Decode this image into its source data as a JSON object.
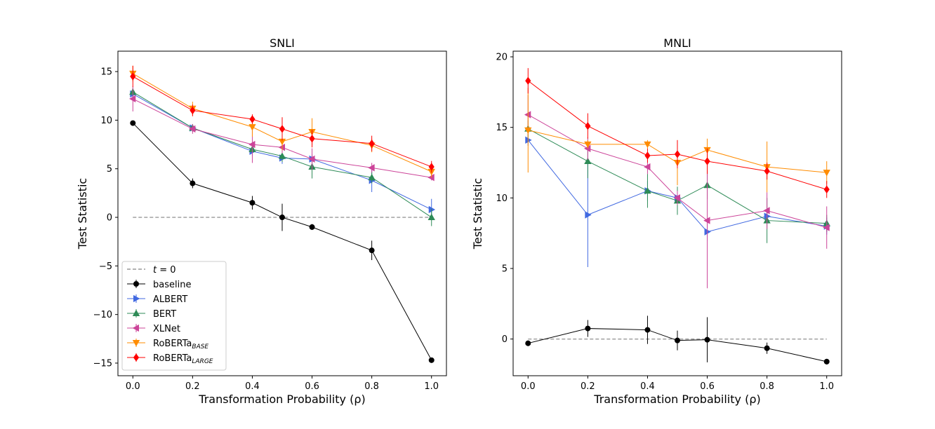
{
  "chart_data": [
    {
      "type": "line",
      "title": "SNLI",
      "xlabel": "Transformation Probability (ρ)",
      "ylabel": "Test Statistic",
      "xlim": [
        -0.05,
        1.05
      ],
      "ylim": [
        -16.3,
        17.1
      ],
      "xticks": [
        0.0,
        0.2,
        0.4,
        0.6,
        0.8,
        1.0
      ],
      "xtick_labels": [
        "0.0",
        "0.2",
        "0.4",
        "0.6",
        "0.8",
        "1.0"
      ],
      "yticks": [
        -15,
        -10,
        -5,
        0,
        5,
        10,
        15
      ],
      "ytick_labels": [
        "−15",
        "−10",
        "−5",
        "0",
        "5",
        "10",
        "15"
      ],
      "grid": false,
      "legend_position": "lower-left",
      "reference_line": {
        "label": "t = 0",
        "y": 0,
        "x_range": [
          0.0,
          1.0
        ],
        "color": "#999999"
      },
      "x": [
        0.0,
        0.2,
        0.4,
        0.5,
        0.6,
        0.8,
        1.0
      ],
      "series": [
        {
          "name": "baseline",
          "color": "#000000",
          "marker": "circle",
          "values": [
            9.7,
            3.5,
            1.5,
            0.0,
            -1.0,
            -3.4,
            -14.7
          ],
          "errors": [
            0.2,
            0.5,
            0.7,
            1.4,
            0.3,
            1.0,
            0.2
          ]
        },
        {
          "name": "ALBERT",
          "color": "#4169E1",
          "marker": "triangle-right",
          "values": [
            12.7,
            9.2,
            6.8,
            6.1,
            6.0,
            3.8,
            0.8
          ],
          "errors": [
            0.4,
            0.4,
            0.5,
            0.6,
            0.5,
            1.2,
            1.1
          ]
        },
        {
          "name": "BERT",
          "color": "#2E8B57",
          "marker": "triangle-up",
          "values": [
            12.9,
            9.2,
            7.0,
            6.3,
            5.2,
            4.1,
            0.0
          ],
          "errors": [
            0.4,
            0.4,
            0.5,
            0.6,
            1.2,
            0.6,
            0.9
          ]
        },
        {
          "name": "XLNet",
          "color": "#CC4499",
          "marker": "triangle-left",
          "values": [
            12.2,
            9.1,
            7.5,
            7.2,
            6.0,
            5.1,
            4.1
          ],
          "errors": [
            1.3,
            0.5,
            1.9,
            0.6,
            1.1,
            0.5,
            0.3
          ]
        },
        {
          "name": "RoBERTa",
          "name_sub": "BASE",
          "color": "#FF8C00",
          "marker": "triangle-down",
          "values": [
            14.8,
            11.2,
            9.3,
            7.8,
            8.8,
            7.4,
            4.7
          ],
          "errors": [
            0.8,
            0.7,
            1.0,
            0.9,
            1.4,
            0.7,
            0.6
          ]
        },
        {
          "name": "RoBERTa",
          "name_sub": "LARGE",
          "color": "#FF0000",
          "marker": "diamond",
          "values": [
            14.5,
            11.0,
            10.1,
            9.1,
            8.1,
            7.6,
            5.2
          ],
          "errors": [
            1.1,
            0.6,
            0.5,
            1.2,
            0.9,
            0.8,
            0.6
          ]
        }
      ]
    },
    {
      "type": "line",
      "title": "MNLI",
      "xlabel": "Transformation Probability (ρ)",
      "ylabel": "Test Statistic",
      "xlim": [
        -0.05,
        1.05
      ],
      "ylim": [
        -2.6,
        20.4
      ],
      "xticks": [
        0.0,
        0.2,
        0.4,
        0.6,
        0.8,
        1.0
      ],
      "xtick_labels": [
        "0.0",
        "0.2",
        "0.4",
        "0.6",
        "0.8",
        "1.0"
      ],
      "yticks": [
        0,
        5,
        10,
        15,
        20
      ],
      "ytick_labels": [
        "0",
        "5",
        "10",
        "15",
        "20"
      ],
      "grid": false,
      "reference_line": {
        "label": "t = 0",
        "y": 0,
        "x_range": [
          0.0,
          1.0
        ],
        "color": "#999999"
      },
      "x": [
        0.0,
        0.2,
        0.4,
        0.5,
        0.6,
        0.8,
        1.0
      ],
      "series": [
        {
          "name": "baseline",
          "color": "#000000",
          "marker": "circle",
          "values": [
            -0.3,
            0.75,
            0.65,
            -0.1,
            -0.05,
            -0.65,
            -1.6
          ],
          "errors": [
            0.2,
            0.6,
            1.0,
            0.7,
            1.6,
            0.4,
            0.2
          ]
        },
        {
          "name": "ALBERT",
          "color": "#4169E1",
          "marker": "triangle-right",
          "values": [
            14.1,
            8.8,
            10.5,
            10.0,
            7.6,
            8.7,
            8.0
          ],
          "errors": [
            0.4,
            3.7,
            0.7,
            0.6,
            0.6,
            0.5,
            0.6
          ]
        },
        {
          "name": "BERT",
          "color": "#2E8B57",
          "marker": "triangle-up",
          "values": [
            14.9,
            12.6,
            10.5,
            9.8,
            10.9,
            8.4,
            8.2
          ],
          "errors": [
            0.6,
            1.2,
            1.2,
            1.0,
            1.0,
            1.6,
            0.6
          ]
        },
        {
          "name": "XLNet",
          "color": "#CC4499",
          "marker": "triangle-left",
          "values": [
            15.9,
            13.5,
            12.2,
            10.0,
            8.4,
            9.1,
            7.9
          ],
          "errors": [
            1.4,
            0.8,
            0.5,
            0.5,
            4.8,
            1.3,
            1.5
          ]
        },
        {
          "name": "RoBERTa",
          "name_sub": "BASE",
          "color": "#FF8C00",
          "marker": "triangle-down",
          "values": [
            14.8,
            13.8,
            13.8,
            12.5,
            13.4,
            12.2,
            11.8
          ],
          "errors": [
            3.0,
            0.3,
            0.3,
            1.6,
            0.8,
            1.8,
            0.8
          ]
        },
        {
          "name": "RoBERTa",
          "name_sub": "LARGE",
          "color": "#FF0000",
          "marker": "diamond",
          "values": [
            18.3,
            15.1,
            13.0,
            13.1,
            12.6,
            11.9,
            10.6
          ],
          "errors": [
            0.9,
            0.9,
            0.5,
            1.0,
            0.9,
            0.6,
            0.6
          ]
        }
      ]
    }
  ],
  "legend": {
    "ref_label": "t",
    "ref_label_rest": " = 0",
    "entries": [
      "baseline",
      "ALBERT",
      "BERT",
      "XLNet",
      "RoBERTa",
      "RoBERTa"
    ],
    "subscripts": [
      "",
      "",
      "",
      "",
      "BASE",
      "LARGE"
    ]
  }
}
